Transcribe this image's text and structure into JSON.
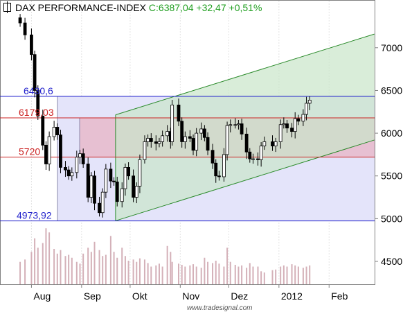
{
  "header": {
    "title": "DAX PERFORMANCE-INDEX",
    "quote": "C:6387,04 +32,47 +0,51%"
  },
  "watermark": "www.tradesignal.com",
  "colors": {
    "up": "#ffffff",
    "down": "#000000",
    "price_line": "#2222cc",
    "level_line": "#cc2222",
    "channel": "#2a8a2a",
    "channel_fill": "#c9e5c9",
    "box_fill": "#e4e4fa",
    "band_fill": "#e8b4c4",
    "volume": "#d4b0b8"
  },
  "chart_data": {
    "type": "candlestick",
    "title": "DAX PERFORMANCE-INDEX",
    "ylim": [
      4300,
      7350
    ],
    "y_ticks": [
      "4500",
      "5000",
      "5500",
      "6000",
      "6500",
      "7000"
    ],
    "x_ticks": [
      "Aug",
      "Sep",
      "Okt",
      "Nov",
      "Dez",
      "2012",
      "Feb"
    ],
    "grid": true,
    "price_labels": [
      {
        "text": "6430,6",
        "value": 6430.6,
        "color": "blue"
      },
      {
        "text": "6179,03",
        "value": 6179.03,
        "color": "red"
      },
      {
        "text": "5720",
        "value": 5720,
        "color": "red"
      },
      {
        "text": "4973,92",
        "value": 4973.92,
        "color": "blue"
      }
    ],
    "channel": {
      "upper": [
        [
          "2011-09-22",
          6215
        ],
        [
          "2012-02-29",
          7160
        ]
      ],
      "lower": [
        [
          "2011-09-22",
          4975
        ],
        [
          "2012-02-29",
          5920
        ]
      ]
    },
    "close": [
      [
        "2011-07-25",
        7290
      ],
      [
        "2011-07-28",
        7150
      ],
      [
        "2011-08-01",
        6920
      ],
      [
        "2011-08-03",
        6500
      ],
      [
        "2011-08-05",
        6200
      ],
      [
        "2011-08-08",
        5860
      ],
      [
        "2011-08-10",
        5640
      ],
      [
        "2011-08-12",
        5960
      ],
      [
        "2011-08-15",
        6070
      ],
      [
        "2011-08-17",
        5980
      ],
      [
        "2011-08-19",
        5600
      ],
      [
        "2011-08-22",
        5570
      ],
      [
        "2011-08-24",
        5500
      ],
      [
        "2011-08-26",
        5540
      ],
      [
        "2011-08-29",
        5720
      ],
      [
        "2011-08-31",
        5760
      ],
      [
        "2011-09-02",
        5640
      ],
      [
        "2011-09-05",
        5250
      ],
      [
        "2011-09-07",
        5500
      ],
      [
        "2011-09-09",
        5180
      ],
      [
        "2011-09-12",
        5070
      ],
      [
        "2011-09-14",
        5310
      ],
      [
        "2011-09-16",
        5580
      ],
      [
        "2011-09-19",
        5440
      ],
      [
        "2011-09-21",
        5430
      ],
      [
        "2011-09-23",
        5200
      ],
      [
        "2011-09-26",
        5350
      ],
      [
        "2011-09-28",
        5600
      ],
      [
        "2011-09-30",
        5500
      ],
      [
        "2011-10-03",
        5250
      ],
      [
        "2011-10-05",
        5380
      ],
      [
        "2011-10-07",
        5690
      ],
      [
        "2011-10-10",
        5900
      ],
      [
        "2011-10-12",
        5940
      ],
      [
        "2011-10-14",
        5900
      ],
      [
        "2011-10-17",
        5880
      ],
      [
        "2011-10-19",
        5900
      ],
      [
        "2011-10-21",
        5970
      ],
      [
        "2011-10-24",
        6020
      ],
      [
        "2011-10-26",
        5900
      ],
      [
        "2011-10-27",
        6330
      ],
      [
        "2011-10-31",
        6140
      ],
      [
        "2011-11-02",
        5900
      ],
      [
        "2011-11-04",
        5960
      ],
      [
        "2011-11-07",
        5940
      ],
      [
        "2011-11-09",
        5800
      ],
      [
        "2011-11-11",
        6000
      ],
      [
        "2011-11-14",
        6050
      ],
      [
        "2011-11-16",
        5950
      ],
      [
        "2011-11-18",
        5800
      ],
      [
        "2011-11-21",
        5650
      ],
      [
        "2011-11-23",
        5500
      ],
      [
        "2011-11-25",
        5490
      ],
      [
        "2011-11-28",
        5750
      ],
      [
        "2011-11-30",
        6090
      ],
      [
        "2011-12-02",
        6100
      ],
      [
        "2011-12-05",
        6100
      ],
      [
        "2011-12-07",
        6110
      ],
      [
        "2011-12-09",
        5990
      ],
      [
        "2011-12-12",
        5780
      ],
      [
        "2011-12-14",
        5700
      ],
      [
        "2011-12-16",
        5700
      ],
      [
        "2011-12-19",
        5690
      ],
      [
        "2011-12-21",
        5850
      ],
      [
        "2011-12-23",
        5900
      ],
      [
        "2011-12-28",
        5850
      ],
      [
        "2011-12-30",
        5900
      ],
      [
        "2012-01-02",
        6100
      ],
      [
        "2012-01-04",
        6110
      ],
      [
        "2012-01-06",
        6060
      ],
      [
        "2012-01-09",
        6020
      ],
      [
        "2012-01-11",
        6170
      ],
      [
        "2012-01-13",
        6140
      ],
      [
        "2012-01-16",
        6220
      ],
      [
        "2012-01-18",
        6350
      ],
      [
        "2012-01-20",
        6387
      ]
    ],
    "volume_max": 1,
    "volume": [
      0.38,
      0.42,
      0.55,
      0.78,
      0.62,
      0.7,
      0.95,
      0.88,
      0.6,
      0.52,
      0.58,
      0.48,
      0.5,
      0.45,
      0.38,
      0.35,
      0.52,
      0.62,
      0.55,
      0.72,
      0.58,
      0.48,
      0.5,
      0.82,
      0.55,
      0.45,
      0.62,
      0.48,
      0.4,
      0.42,
      0.38,
      0.44,
      0.42,
      0.36,
      0.3,
      0.32,
      0.35,
      0.3,
      0.65,
      0.55,
      0.38,
      0.35,
      0.33,
      0.3,
      0.32,
      0.34,
      0.3,
      0.28,
      0.45,
      0.38,
      0.36,
      0.4,
      0.35,
      0.3,
      0.62,
      0.38,
      0.33,
      0.3,
      0.32,
      0.28,
      0.36,
      0.3,
      0.3,
      0.22,
      0.2,
      0.24,
      0.25,
      0.3,
      0.32,
      0.3,
      0.34,
      0.32,
      0.3,
      0.28,
      0.3,
      0.32
    ]
  }
}
